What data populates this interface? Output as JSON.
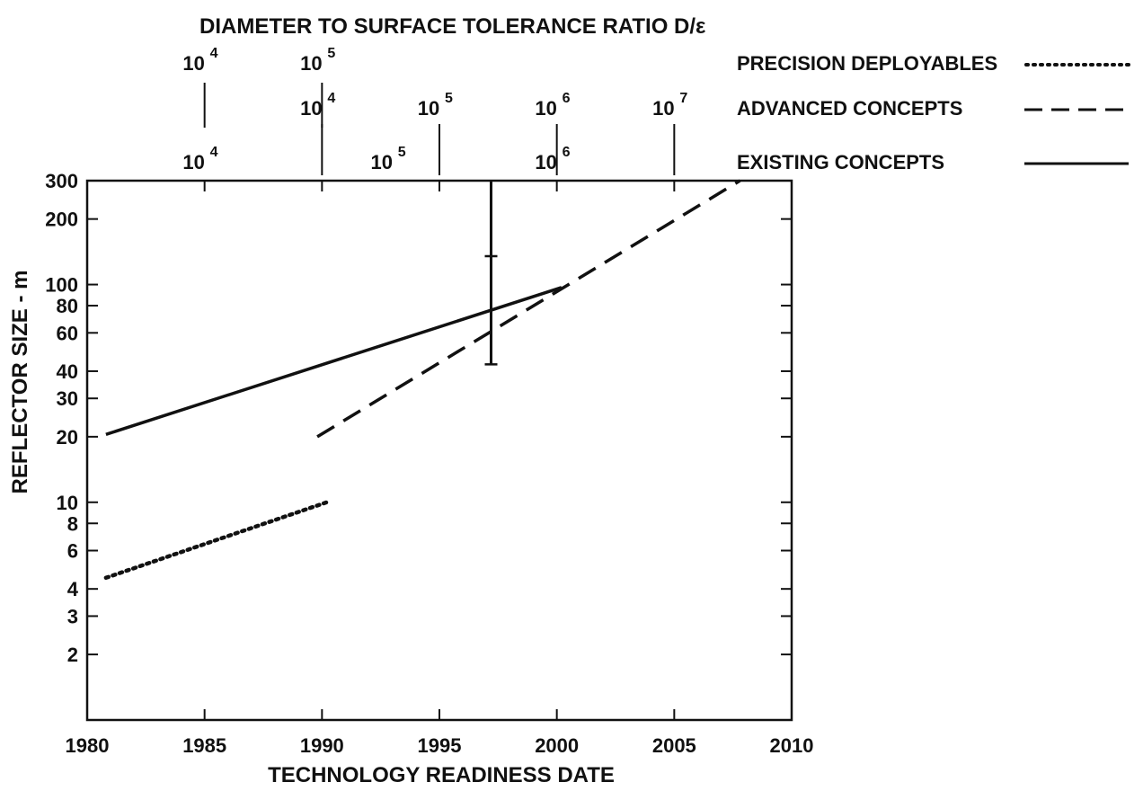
{
  "chart_data": {
    "type": "line",
    "xlabel": "TECHNOLOGY READINESS DATE",
    "ylabel": "REFLECTOR SIZE - m",
    "top_title": "DIAMETER TO SURFACE TOLERANCE RATIO D/ε",
    "xlim": [
      1980,
      2010
    ],
    "ylim": [
      1,
      300
    ],
    "y_scale": "log",
    "x_ticks": [
      "1980",
      "1985",
      "1990",
      "1995",
      "2000",
      "2005",
      "2010"
    ],
    "y_ticks": [
      {
        "value": 2,
        "label": "2"
      },
      {
        "value": 3,
        "label": "3"
      },
      {
        "value": 4,
        "label": "4"
      },
      {
        "value": 6,
        "label": "6"
      },
      {
        "value": 8,
        "label": "8"
      },
      {
        "value": 10,
        "label": "10"
      },
      {
        "value": 20,
        "label": "20"
      },
      {
        "value": 30,
        "label": "30"
      },
      {
        "value": 40,
        "label": "40"
      },
      {
        "value": 60,
        "label": "60"
      },
      {
        "value": 80,
        "label": "80"
      },
      {
        "value": 100,
        "label": "100"
      },
      {
        "value": 200,
        "label": "200"
      },
      {
        "value": 300,
        "label": "300"
      }
    ],
    "top_scale_rows": [
      {
        "row": 1,
        "series": "PRECISION DEPLOYABLES",
        "marks": [
          {
            "year": 1985,
            "base": "10",
            "exp": "4"
          },
          {
            "year": 1990,
            "base": "10",
            "exp": "5"
          }
        ]
      },
      {
        "row": 2,
        "series": "ADVANCED CONCEPTS",
        "marks": [
          {
            "year": 1990,
            "base": "10",
            "exp": "4"
          },
          {
            "year": 1995,
            "base": "10",
            "exp": "5"
          },
          {
            "year": 2000,
            "base": "10",
            "exp": "6"
          },
          {
            "year": 2005,
            "base": "10",
            "exp": "7"
          }
        ]
      },
      {
        "row": 3,
        "series": "EXISTING CONCEPTS",
        "marks": [
          {
            "year": 1985,
            "base": "10",
            "exp": "4"
          },
          {
            "year": 1993,
            "base": "10",
            "exp": "5"
          },
          {
            "year": 2000,
            "base": "10",
            "exp": "6"
          }
        ]
      }
    ],
    "series": [
      {
        "name": "PRECISION DEPLOYABLES",
        "style": "dotted",
        "x": [
          1980.8,
          1990.2
        ],
        "y": [
          4.5,
          10
        ]
      },
      {
        "name": "ADVANCED CONCEPTS",
        "style": "dashed",
        "x": [
          1989.8,
          2007.8
        ],
        "y": [
          20,
          300
        ]
      },
      {
        "name": "EXISTING CONCEPTS",
        "style": "solid",
        "x": [
          1980.8,
          2000.2
        ],
        "y": [
          20.5,
          97
        ]
      }
    ],
    "error_bar": {
      "x": 1997.2,
      "y_low": 43,
      "y_high": 300,
      "y_mid_ticks": [
        135
      ]
    },
    "legend": [
      "PRECISION DEPLOYABLES",
      "ADVANCED CONCEPTS",
      "EXISTING CONCEPTS"
    ],
    "legend_position": "top-right",
    "grid": false,
    "colors": {
      "ink": "#111111",
      "background": "#ffffff"
    }
  }
}
